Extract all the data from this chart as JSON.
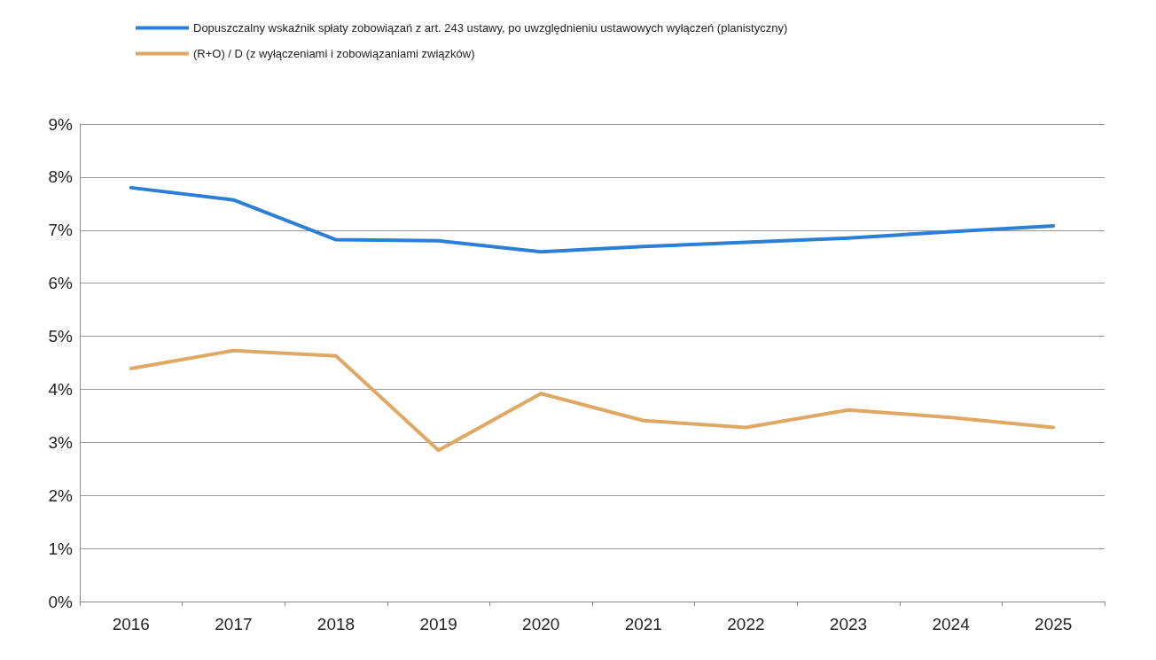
{
  "chart_data": {
    "type": "line",
    "categories": [
      "2016",
      "2017",
      "2018",
      "2019",
      "2020",
      "2021",
      "2022",
      "2023",
      "2024",
      "2025"
    ],
    "series": [
      {
        "name": "Dopuszczalny wskaźnik spłaty zobowiązań z art. 243 ustawy, po uwzględnieniu ustawowych wyłączeń (planistyczny)",
        "color": "#2b7fd6",
        "values": [
          7.8,
          7.57,
          6.82,
          6.8,
          6.59,
          6.69,
          6.77,
          6.85,
          6.97,
          7.08
        ]
      },
      {
        "name": "(R+O) / D (z wyłączeniami i zobowiązaniami związków)",
        "color": "#e0a865",
        "values": [
          4.39,
          4.73,
          4.63,
          2.85,
          3.92,
          3.41,
          3.28,
          3.61,
          3.47,
          3.28
        ]
      }
    ],
    "ylim": [
      0,
      9
    ],
    "yticks": [
      {
        "value": 0,
        "label": "0%"
      },
      {
        "value": 1,
        "label": "1%"
      },
      {
        "value": 2,
        "label": "2%"
      },
      {
        "value": 3,
        "label": "3%"
      },
      {
        "value": 4,
        "label": "4%"
      },
      {
        "value": 5,
        "label": "5%"
      },
      {
        "value": 6,
        "label": "6%"
      },
      {
        "value": 7,
        "label": "7%"
      },
      {
        "value": 8,
        "label": "8%"
      },
      {
        "value": 9,
        "label": "9%"
      }
    ],
    "grid": "y",
    "legend": "top",
    "marker": "none",
    "line_style": "solid"
  }
}
